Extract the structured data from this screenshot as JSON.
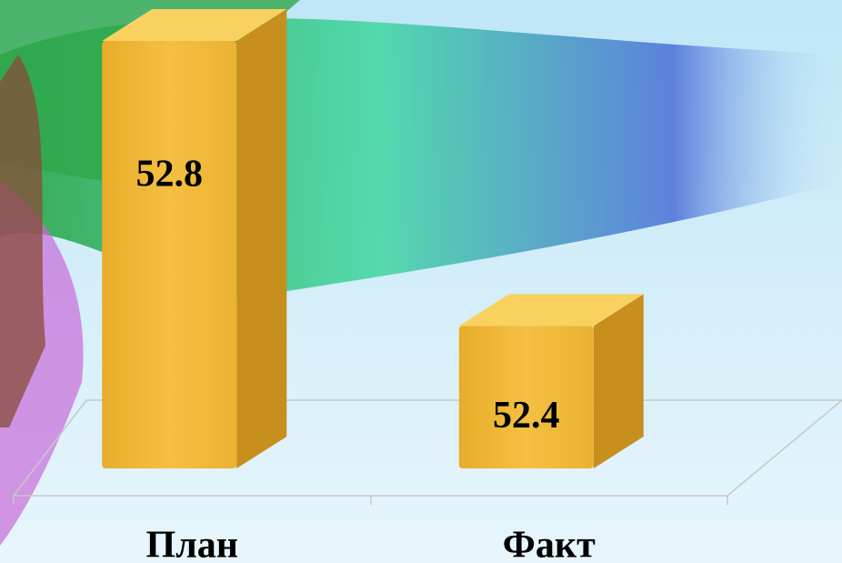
{
  "chart_data": {
    "type": "bar3d",
    "categories": [
      "План",
      "Факт"
    ],
    "values": [
      52.8,
      52.4
    ],
    "color": "#f0b93a",
    "ylim": [
      52.2,
      52.8
    ]
  }
}
